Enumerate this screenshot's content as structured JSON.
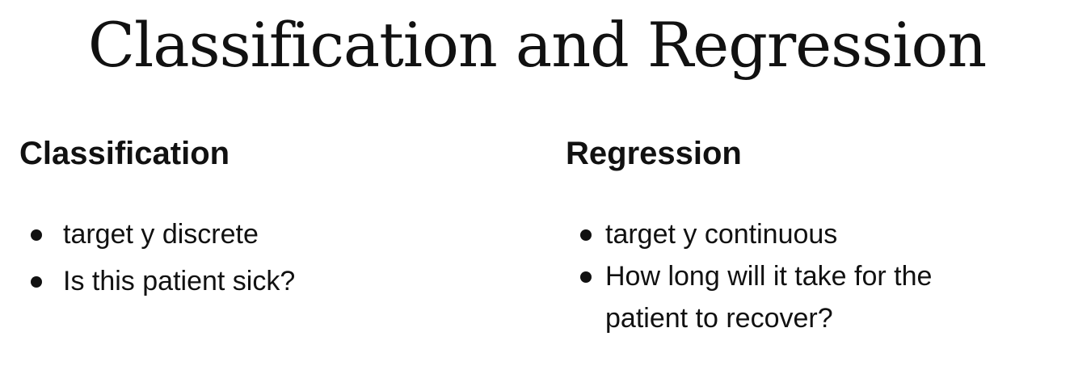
{
  "title": "Classification and Regression",
  "left": {
    "heading": "Classification",
    "items": [
      "target y discrete",
      "Is this patient sick?"
    ]
  },
  "right": {
    "heading": "Regression",
    "items": [
      "target y continuous",
      "How long will it take for the patient to recover?"
    ]
  }
}
